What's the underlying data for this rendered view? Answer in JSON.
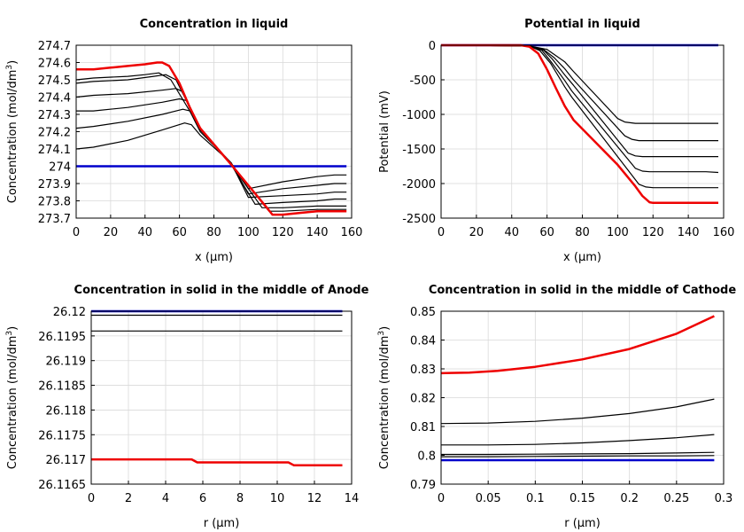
{
  "chart_data": [
    {
      "type": "line",
      "title": "Concentration in liquid",
      "xlabel": "x (µm)",
      "ylabel": "Concentration (mol/dm",
      "ylabel_sup": "3",
      "ylabel_end": ")",
      "xlim": [
        0,
        160
      ],
      "ylim": [
        273.7,
        274.7
      ],
      "xticks": [
        "0",
        "20",
        "40",
        "60",
        "80",
        "100",
        "120",
        "140",
        "160"
      ],
      "yticks": [
        "273.7",
        "273.8",
        "273.9",
        "274",
        "274.1",
        "274.2",
        "274.3",
        "274.4",
        "274.5",
        "274.6",
        "274.7"
      ],
      "grid": true,
      "series": [
        {
          "color": "#0000cc",
          "width": 2.5,
          "x": [
            0,
            157
          ],
          "y": [
            274.0,
            274.0
          ]
        },
        {
          "color": "#000000",
          "width": 1.2,
          "x": [
            0,
            10,
            30,
            50,
            63,
            67,
            72,
            90,
            100,
            120,
            140,
            150,
            157
          ],
          "y": [
            274.1,
            274.11,
            274.15,
            274.21,
            274.25,
            274.24,
            274.18,
            274.02,
            273.87,
            273.91,
            273.94,
            273.95,
            273.95
          ]
        },
        {
          "color": "#000000",
          "width": 1.2,
          "x": [
            0,
            10,
            30,
            50,
            62,
            66,
            72,
            90,
            100,
            120,
            140,
            150,
            157
          ],
          "y": [
            274.22,
            274.23,
            274.26,
            274.3,
            274.33,
            274.32,
            274.2,
            274.02,
            273.84,
            273.87,
            273.89,
            273.9,
            273.9
          ]
        },
        {
          "color": "#000000",
          "width": 1.2,
          "x": [
            0,
            10,
            30,
            50,
            60,
            64,
            72,
            90,
            100,
            120,
            140,
            150,
            157
          ],
          "y": [
            274.32,
            274.32,
            274.34,
            274.37,
            274.39,
            274.38,
            274.21,
            274.02,
            273.82,
            273.83,
            273.84,
            273.85,
            273.85
          ]
        },
        {
          "color": "#000000",
          "width": 1.2,
          "x": [
            0,
            10,
            30,
            50,
            58,
            62,
            72,
            90,
            104,
            120,
            140,
            150,
            157
          ],
          "y": [
            274.4,
            274.41,
            274.42,
            274.44,
            274.45,
            274.43,
            274.22,
            274.01,
            273.78,
            273.79,
            273.8,
            273.81,
            273.81
          ]
        },
        {
          "color": "#000000",
          "width": 1.2,
          "x": [
            0,
            10,
            30,
            45,
            52,
            58,
            72,
            90,
            108,
            120,
            140,
            150,
            157
          ],
          "y": [
            274.48,
            274.49,
            274.5,
            274.52,
            274.53,
            274.5,
            274.22,
            274.01,
            273.76,
            273.76,
            273.77,
            273.77,
            273.77
          ]
        },
        {
          "color": "#000000",
          "width": 1.2,
          "x": [
            0,
            10,
            30,
            40,
            48,
            55,
            72,
            90,
            112,
            120,
            140,
            150,
            157
          ],
          "y": [
            274.5,
            274.51,
            274.52,
            274.53,
            274.54,
            274.5,
            274.22,
            274.01,
            273.74,
            273.74,
            273.75,
            273.75,
            273.75
          ]
        },
        {
          "color": "#ee0000",
          "width": 2.5,
          "x": [
            0,
            10,
            20,
            30,
            40,
            47,
            50,
            54,
            60,
            66,
            72,
            90,
            110,
            114,
            120,
            130,
            140,
            145,
            150,
            157
          ],
          "y": [
            274.56,
            274.56,
            274.57,
            274.58,
            274.59,
            274.6,
            274.6,
            274.58,
            274.48,
            274.34,
            274.22,
            274.01,
            273.77,
            273.72,
            273.72,
            273.73,
            273.74,
            273.74,
            273.74,
            273.74
          ]
        }
      ]
    },
    {
      "type": "line",
      "title": "Potential in liquid",
      "xlabel": "x (µm)",
      "ylabel": "Potential (mV)",
      "ylabel_sup": "",
      "ylabel_end": "",
      "xlim": [
        0,
        160
      ],
      "ylim": [
        -2500,
        0
      ],
      "xticks": [
        "0",
        "20",
        "40",
        "60",
        "80",
        "100",
        "120",
        "140",
        "160"
      ],
      "yticks": [
        "-2500",
        "-2000",
        "-1500",
        "-1000",
        "-500",
        "0"
      ],
      "grid": true,
      "series": [
        {
          "color": "#0000cc",
          "width": 2.5,
          "x": [
            0,
            157
          ],
          "y": [
            0,
            0
          ]
        },
        {
          "color": "#000000",
          "width": 1.2,
          "x": [
            0,
            50,
            60,
            65,
            70,
            75,
            100,
            104,
            110,
            157
          ],
          "y": [
            0,
            -10,
            -60,
            -150,
            -240,
            -380,
            -1060,
            -1110,
            -1130,
            -1130
          ]
        },
        {
          "color": "#000000",
          "width": 1.2,
          "x": [
            0,
            50,
            58,
            64,
            70,
            75,
            104,
            108,
            112,
            157
          ],
          "y": [
            0,
            -10,
            -60,
            -180,
            -340,
            -500,
            -1310,
            -1360,
            -1380,
            -1380
          ]
        },
        {
          "color": "#000000",
          "width": 1.2,
          "x": [
            0,
            50,
            58,
            63,
            70,
            75,
            106,
            110,
            114,
            157
          ],
          "y": [
            0,
            -10,
            -70,
            -200,
            -430,
            -580,
            -1560,
            -1600,
            -1610,
            -1610
          ]
        },
        {
          "color": "#000000",
          "width": 1.2,
          "x": [
            0,
            50,
            57,
            62,
            70,
            74,
            110,
            114,
            118,
            150,
            157
          ],
          "y": [
            0,
            -10,
            -70,
            -230,
            -510,
            -660,
            -1780,
            -1820,
            -1830,
            -1830,
            -1840
          ]
        },
        {
          "color": "#000000",
          "width": 1.2,
          "x": [
            0,
            50,
            56,
            62,
            70,
            74,
            112,
            116,
            120,
            157
          ],
          "y": [
            0,
            -10,
            -80,
            -260,
            -600,
            -750,
            -2010,
            -2050,
            -2060,
            -2060
          ]
        },
        {
          "color": "#ee0000",
          "width": 2.5,
          "x": [
            0,
            45,
            50,
            55,
            60,
            65,
            70,
            75,
            100,
            110,
            114,
            118,
            120,
            130,
            157
          ],
          "y": [
            0,
            0,
            -20,
            -120,
            -350,
            -620,
            -880,
            -1080,
            -1730,
            -2040,
            -2180,
            -2270,
            -2280,
            -2280,
            -2280
          ]
        }
      ]
    },
    {
      "type": "line",
      "title": "Concentration in solid in the middle of Anode",
      "xlabel": "r (µm)",
      "ylabel": "Concentration (mol/dm",
      "ylabel_sup": "3",
      "ylabel_end": ")",
      "xlim": [
        0,
        14
      ],
      "ylim": [
        26.1165,
        26.12
      ],
      "xticks": [
        "0",
        "2",
        "4",
        "6",
        "8",
        "10",
        "12",
        "14"
      ],
      "yticks": [
        "26.1165",
        "26.117",
        "26.1175",
        "26.118",
        "26.1185",
        "26.119",
        "26.1195",
        "26.12"
      ],
      "grid": true,
      "series": [
        {
          "color": "#0000cc",
          "width": 2.5,
          "x": [
            0,
            13.5
          ],
          "y": [
            26.12,
            26.12
          ]
        },
        {
          "color": "#000000",
          "width": 1.2,
          "x": [
            0,
            13.5
          ],
          "y": [
            26.11992,
            26.11992
          ]
        },
        {
          "color": "#000000",
          "width": 1.2,
          "x": [
            0,
            13.5
          ],
          "y": [
            26.1196,
            26.1196
          ]
        },
        {
          "color": "#ee0000",
          "width": 2.5,
          "x": [
            0,
            5.4,
            5.7,
            10.6,
            10.9,
            13.5
          ],
          "y": [
            26.117,
            26.117,
            26.11694,
            26.11694,
            26.11688,
            26.11688
          ]
        }
      ]
    },
    {
      "type": "line",
      "title": "Concentration in solid in the middle of Cathode",
      "xlabel": "r (µm)",
      "ylabel": "Concentration (mol/dm",
      "ylabel_sup": "3",
      "ylabel_end": ")",
      "xlim": [
        0,
        0.3
      ],
      "ylim": [
        0.79,
        0.85
      ],
      "xticks": [
        "0",
        "0.05",
        "0.1",
        "0.15",
        "0.2",
        "0.25",
        "0.3"
      ],
      "yticks": [
        "0.79",
        "0.8",
        "0.81",
        "0.82",
        "0.83",
        "0.84",
        "0.85"
      ],
      "grid": true,
      "series": [
        {
          "color": "#000000",
          "width": 1.2,
          "x": [
            0,
            0.05,
            0.1,
            0.15,
            0.2,
            0.25,
            0.29
          ],
          "y": [
            0.8003,
            0.8003,
            0.8004,
            0.8005,
            0.8006,
            0.8008,
            0.801
          ]
        },
        {
          "color": "#000000",
          "width": 1.2,
          "x": [
            0,
            0.05,
            0.1,
            0.15,
            0.2,
            0.25,
            0.29
          ],
          "y": [
            0.7995,
            0.7995,
            0.7996,
            0.7997,
            0.7998,
            0.7998,
            0.7999
          ]
        },
        {
          "color": "#000000",
          "width": 1.2,
          "x": [
            0,
            0.05,
            0.1,
            0.15,
            0.2,
            0.25,
            0.29
          ],
          "y": [
            0.8036,
            0.8036,
            0.8038,
            0.8043,
            0.8051,
            0.8061,
            0.8072
          ]
        },
        {
          "color": "#000000",
          "width": 1.2,
          "x": [
            0,
            0.05,
            0.1,
            0.15,
            0.2,
            0.25,
            0.29
          ],
          "y": [
            0.811,
            0.8112,
            0.8118,
            0.8129,
            0.8145,
            0.8168,
            0.8195
          ]
        },
        {
          "color": "#0000cc",
          "width": 2.5,
          "x": [
            0,
            0.29
          ],
          "y": [
            0.7983,
            0.7983
          ]
        },
        {
          "color": "#ee0000",
          "width": 2.5,
          "x": [
            0,
            0.03,
            0.06,
            0.1,
            0.15,
            0.2,
            0.25,
            0.29
          ],
          "y": [
            0.8285,
            0.8287,
            0.8293,
            0.8307,
            0.8333,
            0.8369,
            0.8422,
            0.8483
          ]
        }
      ]
    }
  ]
}
